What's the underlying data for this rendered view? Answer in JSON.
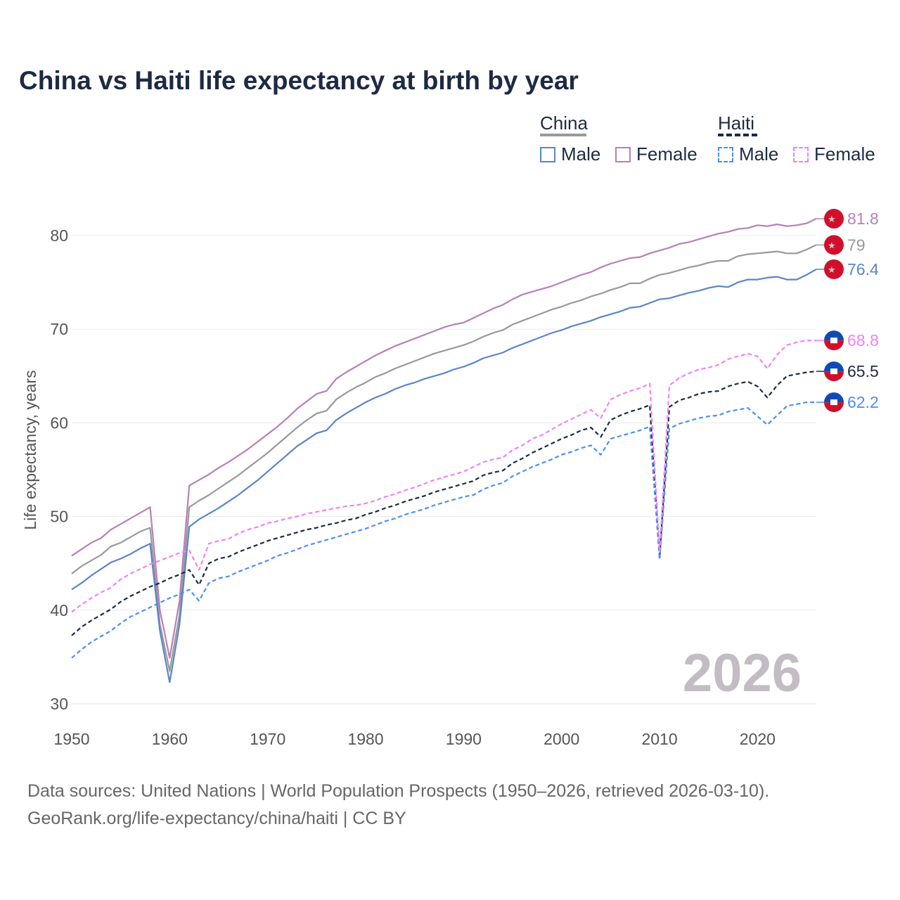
{
  "chart_data": {
    "type": "line",
    "title": "China vs Haiti life expectancy at birth by year",
    "xlabel": "",
    "ylabel": "Life expectancy, years",
    "xlim": [
      1950,
      2026
    ],
    "ylim": [
      30,
      83
    ],
    "xticks": [
      1950,
      1960,
      1970,
      1980,
      1990,
      2000,
      2010,
      2020
    ],
    "yticks": [
      30,
      40,
      50,
      60,
      70,
      80
    ],
    "grid": true,
    "watermark_year": "2026",
    "legend": {
      "groups": [
        {
          "label": "China",
          "items": [
            "Male",
            "Female"
          ]
        },
        {
          "label": "Haiti",
          "items": [
            "Male",
            "Female"
          ]
        }
      ],
      "placement": "top-right"
    },
    "x_start": 1950,
    "series": [
      {
        "name": "China total",
        "country": "China",
        "color": "#999999",
        "dashed": false,
        "end_label": "79",
        "values": [
          43.9,
          44.7,
          45.3,
          45.9,
          46.8,
          47.2,
          47.8,
          48.4,
          48.8,
          38.5,
          33.5,
          39.5,
          51.0,
          51.7,
          52.3,
          53.0,
          53.7,
          54.4,
          55.2,
          56.0,
          56.8,
          57.7,
          58.6,
          59.5,
          60.3,
          61.0,
          61.3,
          62.5,
          63.2,
          63.8,
          64.3,
          64.9,
          65.3,
          65.8,
          66.2,
          66.6,
          67.0,
          67.4,
          67.7,
          68.0,
          68.3,
          68.7,
          69.2,
          69.6,
          69.9,
          70.5,
          70.9,
          71.3,
          71.7,
          72.1,
          72.4,
          72.8,
          73.1,
          73.5,
          73.8,
          74.2,
          74.5,
          74.9,
          74.9,
          75.4,
          75.8,
          76.0,
          76.3,
          76.6,
          76.8,
          77.1,
          77.3,
          77.3,
          77.8,
          78.0,
          78.1,
          78.2,
          78.3,
          78.1,
          78.1,
          78.5,
          79.0
        ]
      },
      {
        "name": "China male",
        "country": "China",
        "color": "#5b84c8",
        "dashed": false,
        "end_label": "76.4",
        "values": [
          42.2,
          42.9,
          43.7,
          44.4,
          45.1,
          45.5,
          46.0,
          46.6,
          47.1,
          37.8,
          32.3,
          38.5,
          48.9,
          49.7,
          50.3,
          50.9,
          51.6,
          52.3,
          53.1,
          53.9,
          54.8,
          55.7,
          56.6,
          57.5,
          58.2,
          58.9,
          59.2,
          60.3,
          61.0,
          61.6,
          62.2,
          62.7,
          63.1,
          63.6,
          64.0,
          64.3,
          64.7,
          65.0,
          65.3,
          65.7,
          66.0,
          66.4,
          66.9,
          67.2,
          67.5,
          68.0,
          68.4,
          68.8,
          69.2,
          69.6,
          69.9,
          70.3,
          70.6,
          70.9,
          71.3,
          71.6,
          71.9,
          72.3,
          72.4,
          72.8,
          73.2,
          73.3,
          73.6,
          73.9,
          74.1,
          74.4,
          74.6,
          74.5,
          75.0,
          75.3,
          75.3,
          75.5,
          75.6,
          75.3,
          75.3,
          75.8,
          76.4
        ]
      },
      {
        "name": "China female",
        "country": "China",
        "color": "#b87fb8",
        "dashed": false,
        "end_label": "81.8",
        "values": [
          45.8,
          46.5,
          47.2,
          47.7,
          48.6,
          49.2,
          49.8,
          50.4,
          51.0,
          40.0,
          34.9,
          41.0,
          53.3,
          53.9,
          54.5,
          55.2,
          55.8,
          56.5,
          57.2,
          58.0,
          58.8,
          59.6,
          60.5,
          61.5,
          62.3,
          63.1,
          63.4,
          64.7,
          65.4,
          66.0,
          66.6,
          67.2,
          67.7,
          68.2,
          68.6,
          69.0,
          69.4,
          69.8,
          70.2,
          70.5,
          70.7,
          71.2,
          71.7,
          72.2,
          72.6,
          73.2,
          73.7,
          74.0,
          74.3,
          74.6,
          75.0,
          75.4,
          75.8,
          76.1,
          76.6,
          77.0,
          77.3,
          77.6,
          77.7,
          78.1,
          78.4,
          78.7,
          79.1,
          79.3,
          79.6,
          79.9,
          80.2,
          80.4,
          80.7,
          80.8,
          81.1,
          81.0,
          81.2,
          81.0,
          81.1,
          81.3,
          81.8
        ]
      },
      {
        "name": "Haiti total",
        "country": "Haiti",
        "color": "#1e2a44",
        "dashed": true,
        "end_label": "65.5",
        "values": [
          37.3,
          38.2,
          38.9,
          39.5,
          40.1,
          40.9,
          41.5,
          42.0,
          42.5,
          42.9,
          43.4,
          43.8,
          44.3,
          42.7,
          45.0,
          45.5,
          45.7,
          46.2,
          46.6,
          47.0,
          47.4,
          47.7,
          48.0,
          48.3,
          48.6,
          48.8,
          49.1,
          49.3,
          49.6,
          49.8,
          50.2,
          50.5,
          50.9,
          51.2,
          51.6,
          51.9,
          52.2,
          52.6,
          52.9,
          53.2,
          53.5,
          53.8,
          54.4,
          54.7,
          54.9,
          55.7,
          56.2,
          56.8,
          57.3,
          57.8,
          58.3,
          58.7,
          59.2,
          59.5,
          58.5,
          60.3,
          60.8,
          61.2,
          61.5,
          61.9,
          45.6,
          61.7,
          62.4,
          62.7,
          63.1,
          63.3,
          63.4,
          63.9,
          64.2,
          64.4,
          63.9,
          62.7,
          64.0,
          65.0,
          65.2,
          65.4,
          65.5
        ]
      },
      {
        "name": "Haiti male",
        "country": "Haiti",
        "color": "#4a8ff5",
        "dashed": true,
        "end_label": "62.2",
        "values": [
          34.9,
          35.8,
          36.6,
          37.2,
          37.8,
          38.6,
          39.3,
          39.8,
          40.3,
          40.8,
          41.3,
          41.7,
          42.2,
          41.0,
          42.9,
          43.4,
          43.6,
          44.1,
          44.5,
          44.9,
          45.3,
          45.8,
          46.1,
          46.5,
          46.9,
          47.2,
          47.5,
          47.8,
          48.1,
          48.4,
          48.7,
          49.1,
          49.5,
          49.8,
          50.2,
          50.5,
          50.8,
          51.2,
          51.5,
          51.8,
          52.1,
          52.3,
          52.9,
          53.3,
          53.6,
          54.3,
          54.8,
          55.3,
          55.7,
          56.1,
          56.6,
          56.9,
          57.3,
          57.6,
          56.6,
          58.3,
          58.6,
          58.9,
          59.2,
          59.6,
          45.4,
          59.4,
          59.9,
          60.2,
          60.5,
          60.7,
          60.8,
          61.2,
          61.4,
          61.6,
          60.7,
          59.8,
          60.8,
          61.8,
          62.0,
          62.2,
          62.2
        ]
      },
      {
        "name": "Haiti female",
        "country": "Haiti",
        "color": "#f57ff5",
        "dashed": true,
        "end_label": "68.8",
        "values": [
          39.8,
          40.6,
          41.3,
          41.9,
          42.4,
          43.3,
          43.9,
          44.4,
          44.9,
          45.3,
          45.7,
          46.1,
          46.4,
          44.3,
          47.1,
          47.4,
          47.6,
          48.2,
          48.6,
          48.9,
          49.3,
          49.5,
          49.8,
          50.0,
          50.3,
          50.5,
          50.7,
          50.9,
          51.1,
          51.2,
          51.4,
          51.7,
          52.1,
          52.4,
          52.8,
          53.1,
          53.5,
          53.9,
          54.2,
          54.5,
          54.8,
          55.3,
          55.8,
          56.1,
          56.3,
          57.1,
          57.6,
          58.3,
          58.7,
          59.3,
          59.9,
          60.4,
          60.9,
          61.4,
          60.5,
          62.5,
          63.0,
          63.4,
          63.7,
          64.2,
          46.2,
          64.0,
          64.8,
          65.3,
          65.7,
          65.9,
          66.2,
          66.8,
          67.1,
          67.4,
          67.1,
          65.8,
          67.3,
          68.3,
          68.6,
          68.8,
          68.8
        ]
      }
    ]
  },
  "footer": {
    "line1": "Data sources: United Nations | World Population Prospects (1950–2026, retrieved 2026-03-10).",
    "line2": "GeoRank.org/life-expectancy/china/haiti | CC BY"
  }
}
